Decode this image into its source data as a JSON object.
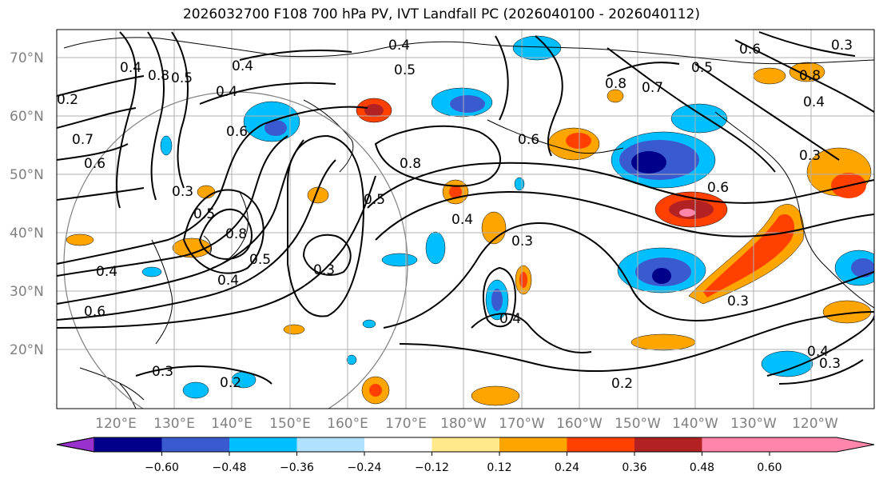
{
  "title": "2026032700 F108 700 hPa PV, IVT Landfall PC (2026040100 - 2026040112)",
  "lat_labels": [
    "70°N",
    "60°N",
    "50°N",
    "40°N",
    "30°N",
    "20°N"
  ],
  "lon_labels": [
    "120°E",
    "130°E",
    "140°E",
    "150°E",
    "160°E",
    "170°E",
    "180°W",
    "170°W",
    "160°W",
    "150°W",
    "140°W",
    "130°W",
    "120°W"
  ],
  "colorbar": {
    "colors": [
      "#9932cc",
      "#00008b",
      "#3a5bd0",
      "#00bfff",
      "#b0e2ff",
      "#ffffff",
      "#ffe98a",
      "#ffa500",
      "#ff4000",
      "#b22222",
      "#ff85aa"
    ],
    "tick_labels": [
      "−0.60",
      "−0.48",
      "−0.36",
      "−0.24",
      "−0.12",
      "0.12",
      "0.24",
      "0.36",
      "0.48",
      "0.60"
    ]
  },
  "contour_labels": [
    "0.4",
    "0.4",
    "0.5",
    "0.4",
    "0.6",
    "0.5",
    "0.5",
    "0.6",
    "0.8",
    "0.7",
    "0.4",
    "0.8",
    "0.6",
    "0.7",
    "0.6",
    "0.5",
    "0.8",
    "0.5",
    "0.8",
    "0.4",
    "0.6",
    "0.3",
    "0.5",
    "0.3",
    "0.4",
    "0.4",
    "0.6",
    "0.4",
    "0.3",
    "0.4",
    "0.3",
    "0.2",
    "0.2",
    "0.3",
    "0.3",
    "0.4",
    "0.3",
    "0.3",
    "0.8",
    "0.2"
  ]
}
